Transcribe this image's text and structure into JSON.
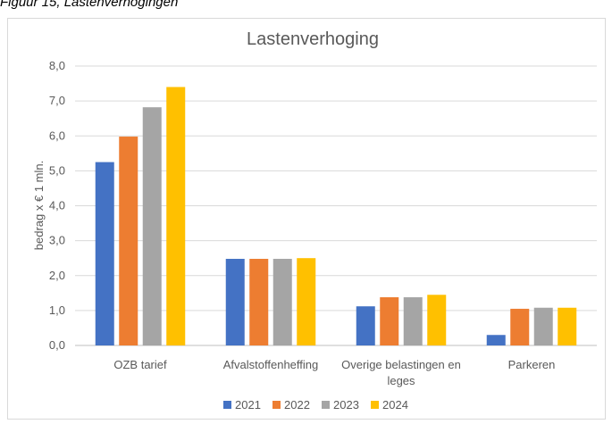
{
  "caption": "Figuur 15, Lastenverhogingen",
  "chart_data": {
    "type": "bar",
    "title": "Lastenverhoging",
    "xlabel": "",
    "ylabel": "bedrag x € 1 mln.",
    "categories": [
      [
        "OZB tarief"
      ],
      [
        "Afvalstoffenheffing"
      ],
      [
        "Overige belastingen en",
        "leges"
      ],
      [
        "Parkeren"
      ]
    ],
    "series": [
      {
        "name": "2021",
        "color": "#4472c4",
        "values": [
          5.25,
          2.48,
          1.12,
          0.3
        ]
      },
      {
        "name": "2022",
        "color": "#ed7d31",
        "values": [
          5.98,
          2.48,
          1.38,
          1.05
        ]
      },
      {
        "name": "2023",
        "color": "#a5a5a5",
        "values": [
          6.82,
          2.48,
          1.38,
          1.08
        ]
      },
      {
        "name": "2024",
        "color": "#ffc000",
        "values": [
          7.4,
          2.5,
          1.45,
          1.08
        ]
      }
    ],
    "ylim": [
      0,
      8
    ],
    "yticks": [
      "0,0",
      "1,0",
      "2,0",
      "3,0",
      "4,0",
      "5,0",
      "6,0",
      "7,0",
      "8,0"
    ],
    "grid": true,
    "legend": "bottom"
  }
}
